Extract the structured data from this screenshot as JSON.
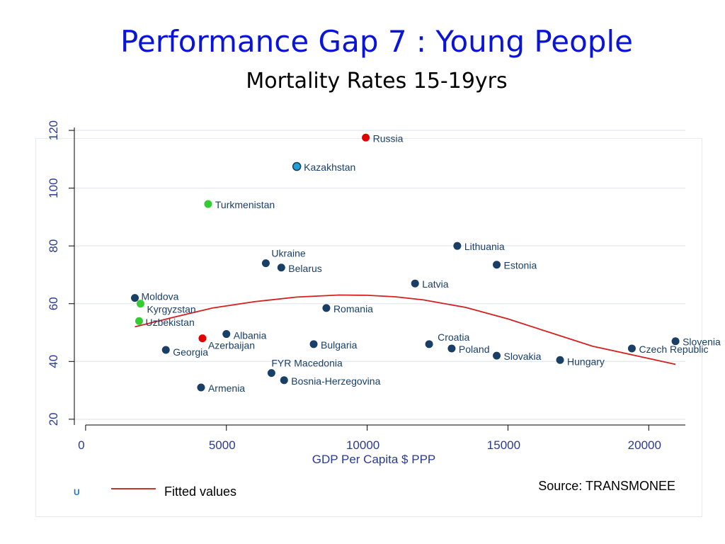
{
  "title": "Performance Gap 7 : Young People",
  "subtitle": "Mortality Rates  15-19yrs",
  "source": "Source: TRANSMONEE",
  "legend_marker": "U",
  "chart_data": {
    "type": "scatter",
    "xlabel": "GDP Per Capita  $ PPP",
    "ylabel": "",
    "xlim": [
      -400,
      21300
    ],
    "ylim": [
      18,
      121
    ],
    "xticks": [
      0,
      5000,
      10000,
      15000,
      20000
    ],
    "xtick_labels": [
      "0",
      "5000",
      "10000",
      "15000",
      "20000"
    ],
    "yticks": [
      20,
      40,
      60,
      80,
      100,
      120
    ],
    "ytick_labels": [
      "20",
      "40",
      "60",
      "80",
      "100",
      "120"
    ],
    "grid": true,
    "colors": {
      "dark": "#1a3f66",
      "red": "#e00000",
      "green": "#33cc33",
      "blue": "#1fa0d8",
      "fit": "#d32020",
      "axis_text": "#2b3a8f",
      "label_text": "#1a3f66"
    },
    "points": [
      {
        "label": "Russia",
        "x": 9950,
        "y": 117.5,
        "color": "red"
      },
      {
        "label": "Kazakhstan",
        "x": 7500,
        "y": 107.5,
        "color": "blue"
      },
      {
        "label": "Turkmenistan",
        "x": 4350,
        "y": 94.5,
        "color": "green"
      },
      {
        "label": "Lithuania",
        "x": 13200,
        "y": 80,
        "color": "dark"
      },
      {
        "label": "Ukraine",
        "x": 6400,
        "y": 74,
        "color": "dark"
      },
      {
        "label": "Belarus",
        "x": 6950,
        "y": 72.5,
        "color": "dark"
      },
      {
        "label": "Estonia",
        "x": 14600,
        "y": 73.5,
        "color": "dark"
      },
      {
        "label": "Latvia",
        "x": 11700,
        "y": 67,
        "color": "dark"
      },
      {
        "label": "Moldova",
        "x": 1750,
        "y": 62,
        "color": "dark"
      },
      {
        "label": "Kyrgyzstan",
        "x": 1950,
        "y": 60,
        "color": "green"
      },
      {
        "label": "Romania",
        "x": 8550,
        "y": 58.5,
        "color": "dark"
      },
      {
        "label": "Uzbekistan",
        "x": 1900,
        "y": 54,
        "color": "green"
      },
      {
        "label": "Albania",
        "x": 5000,
        "y": 49.5,
        "color": "dark"
      },
      {
        "label": "Azerbaijan",
        "x": 4150,
        "y": 48,
        "color": "red"
      },
      {
        "label": "Georgia",
        "x": 2850,
        "y": 44,
        "color": "dark"
      },
      {
        "label": "Bulgaria",
        "x": 8100,
        "y": 46,
        "color": "dark"
      },
      {
        "label": "Croatia",
        "x": 12200,
        "y": 46,
        "color": "dark"
      },
      {
        "label": "Poland",
        "x": 13000,
        "y": 44.5,
        "color": "dark"
      },
      {
        "label": "Slovakia",
        "x": 14600,
        "y": 42,
        "color": "dark"
      },
      {
        "label": "Hungary",
        "x": 16850,
        "y": 40.5,
        "color": "dark"
      },
      {
        "label": "Czech Republic",
        "x": 19400,
        "y": 44.5,
        "color": "dark"
      },
      {
        "label": "Slovenia",
        "x": 20950,
        "y": 47,
        "color": "dark"
      },
      {
        "label": "FYR Macedonia",
        "x": 6600,
        "y": 36,
        "color": "dark"
      },
      {
        "label": "Bosnia-Herzegovina",
        "x": 7050,
        "y": 33.5,
        "color": "dark"
      },
      {
        "label": "Armenia",
        "x": 4100,
        "y": 31,
        "color": "dark"
      }
    ],
    "fitted": {
      "name": "Fitted values",
      "x": [
        1750,
        3000,
        4500,
        6000,
        7500,
        9000,
        10000,
        11000,
        12000,
        13500,
        15000,
        16500,
        18000,
        19500,
        20950
      ],
      "y": [
        52,
        55,
        58.5,
        60.7,
        62.3,
        63,
        62.9,
        62.4,
        61.3,
        58.7,
        54.7,
        50,
        45.3,
        42.1,
        39
      ]
    }
  }
}
